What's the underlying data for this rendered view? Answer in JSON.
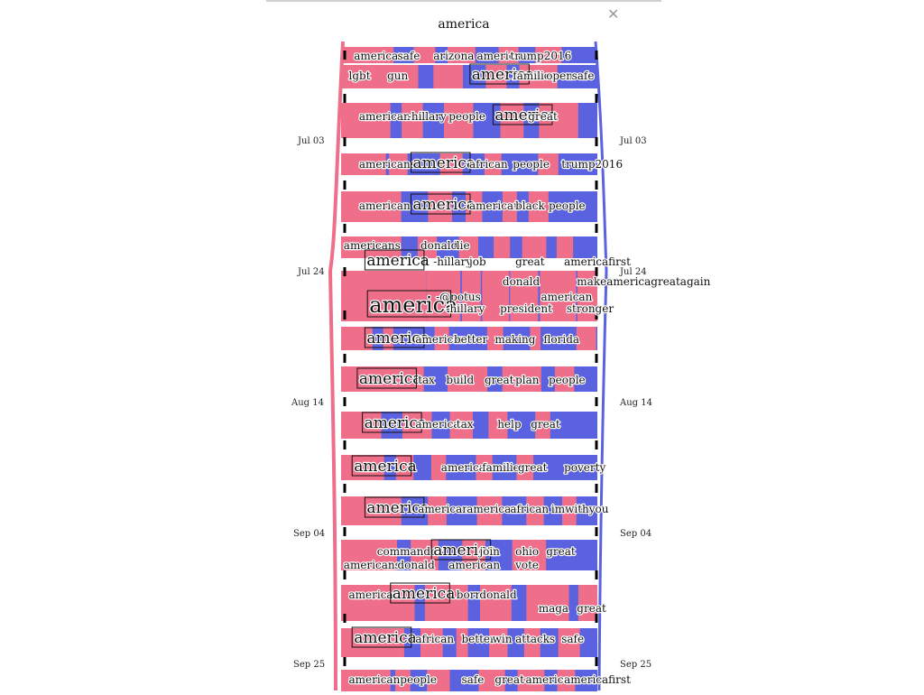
{
  "panel": {
    "title": "america",
    "close_icon": "close-icon"
  },
  "colors": {
    "democrat": "#ef6f8a",
    "republican": "#5b62e0",
    "background": "#ffffff"
  },
  "date_labels": {
    "left": [
      "Jul 03",
      "Jul 24",
      "Aug 14",
      "Sep 04",
      "Sep 25"
    ],
    "right": [
      "Jul 03",
      "Jul 24",
      "Aug 14",
      "Sep 04",
      "Sep 25"
    ]
  },
  "chart_data": {
    "type": "area",
    "title": "america",
    "y_ticks": [
      "Jul 03",
      "Jul 24",
      "Aug 14",
      "Sep 04",
      "Sep 25"
    ],
    "series": [
      {
        "color": "#ef6f8a"
      },
      {
        "color": "#5b62e0"
      }
    ],
    "rows": [
      {
        "words": [
          {
            "t": "american",
            "x": 0.05
          },
          {
            "t": "safe",
            "x": 0.22
          },
          {
            "t": "arizona",
            "x": 0.36
          },
          {
            "t": "america",
            "x": 0.53
          },
          {
            "t": "trump2016",
            "x": 0.66
          }
        ]
      },
      {
        "words": [
          {
            "t": "lgbt",
            "x": 0.03
          },
          {
            "t": "gun",
            "x": 0.18
          },
          {
            "t": "america",
            "x": 0.51,
            "big": 1
          },
          {
            "t": "families",
            "x": 0.67
          },
          {
            "t": "open",
            "x": 0.8
          },
          {
            "t": "safe",
            "x": 0.9
          }
        ]
      },
      {
        "words": [
          {
            "t": "americans",
            "x": 0.07
          },
          {
            "t": "-hillary",
            "x": 0.26
          },
          {
            "t": "people",
            "x": 0.42
          },
          {
            "t": "america",
            "x": 0.6,
            "big": 1
          },
          {
            "t": "great",
            "x": 0.73
          }
        ]
      },
      {
        "words": [
          {
            "t": "americans",
            "x": 0.07
          },
          {
            "t": "america",
            "x": 0.28,
            "big": 1
          },
          {
            "t": "african",
            "x": 0.5
          },
          {
            "t": "people",
            "x": 0.67
          },
          {
            "t": "trump2016",
            "x": 0.86
          }
        ]
      },
      {
        "words": [
          {
            "t": "american",
            "x": 0.07
          },
          {
            "t": "america",
            "x": 0.28,
            "big": 1
          },
          {
            "t": "americans",
            "x": 0.5
          },
          {
            "t": "black",
            "x": 0.68
          },
          {
            "t": "people",
            "x": 0.81
          }
        ]
      },
      {
        "words": [
          {
            "t": "americans",
            "x": 0.01
          },
          {
            "t": "donald",
            "x": 0.31
          },
          {
            "t": "lie",
            "x": 0.45
          }
        ]
      },
      {
        "words": [
          {
            "t": "america",
            "x": 0.1,
            "big": 1
          },
          {
            "t": "-hillary",
            "x": 0.36
          },
          {
            "t": "job",
            "x": 0.5
          },
          {
            "t": "great",
            "x": 0.68
          },
          {
            "t": "americafirst",
            "x": 0.87
          }
        ]
      },
      {
        "words": [
          {
            "t": "donald",
            "x": 0.63
          },
          {
            "t": "makeamericagreatagain",
            "x": 0.92
          }
        ]
      },
      {
        "words": [
          {
            "t": "-@potus",
            "x": 0.37
          },
          {
            "t": "american",
            "x": 0.78
          }
        ]
      },
      {
        "words": [
          {
            "t": "america",
            "x": 0.11,
            "huge": 1
          },
          {
            "t": "-hillary",
            "x": 0.41
          },
          {
            "t": "president",
            "x": 0.62
          },
          {
            "t": "stronger",
            "x": 0.88
          }
        ]
      },
      {
        "words": [
          {
            "t": "america",
            "x": 0.1,
            "big": 1
          },
          {
            "t": "american",
            "x": 0.29
          },
          {
            "t": "better",
            "x": 0.44
          },
          {
            "t": "making",
            "x": 0.6
          },
          {
            "t": "florida",
            "x": 0.79
          }
        ]
      },
      {
        "words": [
          {
            "t": "america",
            "x": 0.07,
            "big": 1
          },
          {
            "t": "tax",
            "x": 0.3
          },
          {
            "t": "build",
            "x": 0.41
          },
          {
            "t": "great",
            "x": 0.56
          },
          {
            "t": "plan",
            "x": 0.68
          },
          {
            "t": "people",
            "x": 0.81
          }
        ]
      },
      {
        "words": [
          {
            "t": "america",
            "x": 0.09,
            "big": 1
          },
          {
            "t": "american",
            "x": 0.29
          },
          {
            "t": "tax",
            "x": 0.45
          },
          {
            "t": "help",
            "x": 0.61
          },
          {
            "t": "great",
            "x": 0.74
          }
        ]
      },
      {
        "words": [
          {
            "t": "america",
            "x": 0.05,
            "big": 1
          },
          {
            "t": "american",
            "x": 0.39
          },
          {
            "t": "families",
            "x": 0.55
          },
          {
            "t": "great",
            "x": 0.69
          },
          {
            "t": "poverty",
            "x": 0.87
          }
        ]
      },
      {
        "words": [
          {
            "t": "america",
            "x": 0.1,
            "big": 1
          },
          {
            "t": "american",
            "x": 0.3
          },
          {
            "t": "americans",
            "x": 0.49
          },
          {
            "t": "african",
            "x": 0.66
          },
          {
            "t": "imwithyou",
            "x": 0.82
          }
        ]
      },
      {
        "words": [
          {
            "t": "commander",
            "x": 0.14
          },
          {
            "t": "america",
            "x": 0.36,
            "big": 1
          },
          {
            "t": "join",
            "x": 0.54
          },
          {
            "t": "ohio",
            "x": 0.68
          },
          {
            "t": "great",
            "x": 0.8
          }
        ]
      },
      {
        "words": [
          {
            "t": "americans",
            "x": 0.01
          },
          {
            "t": "donald",
            "x": 0.22
          },
          {
            "t": "american",
            "x": 0.42
          },
          {
            "t": "vote",
            "x": 0.68
          }
        ]
      },
      {
        "words": [
          {
            "t": "american",
            "x": 0.03
          },
          {
            "t": "america",
            "x": 0.2,
            "big": 1
          },
          {
            "t": "born",
            "x": 0.45
          },
          {
            "t": "donald",
            "x": 0.54
          }
        ]
      },
      {
        "words": [
          {
            "t": "maga",
            "x": 0.77
          },
          {
            "t": "great",
            "x": 0.92
          }
        ]
      },
      {
        "words": [
          {
            "t": "america",
            "x": 0.05,
            "big": 1
          },
          {
            "t": "african",
            "x": 0.29
          },
          {
            "t": "better",
            "x": 0.47
          },
          {
            "t": "win",
            "x": 0.59
          },
          {
            "t": "attacks",
            "x": 0.68
          },
          {
            "t": "safe",
            "x": 0.86
          }
        ]
      },
      {
        "words": [
          {
            "t": "american",
            "x": 0.03
          },
          {
            "t": "people",
            "x": 0.23
          },
          {
            "t": "safe",
            "x": 0.47
          },
          {
            "t": "great",
            "x": 0.6
          },
          {
            "t": "america",
            "x": 0.72
          },
          {
            "t": "americafirst",
            "x": 0.87
          }
        ]
      }
    ]
  }
}
